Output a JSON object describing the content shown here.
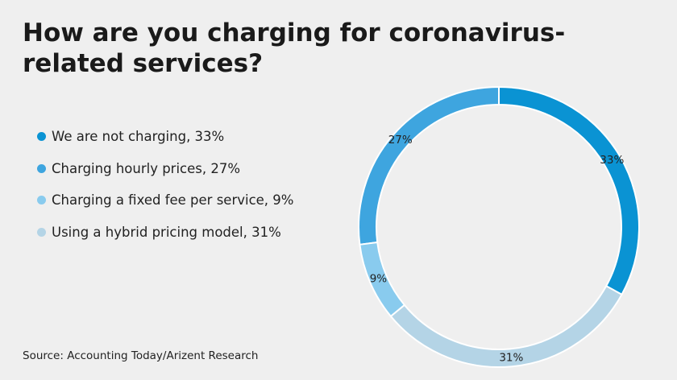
{
  "chart_data": {
    "type": "pie",
    "title": "How are you charging for coronavirus-related services?",
    "categories": [
      "We are not charging, 33%",
      "Charging hourly prices, 27%",
      "Charging a fixed fee per service, 9%",
      "Using a hybrid pricing model, 31%"
    ],
    "values": [
      33,
      27,
      9,
      31
    ],
    "value_labels": [
      "33%",
      "27%",
      "9%",
      "31%"
    ],
    "colors": [
      "#0a93d3",
      "#3ea5df",
      "#89cbee",
      "#b4d4e6"
    ],
    "source": "Source: Accounting Today/Arizent Research"
  }
}
